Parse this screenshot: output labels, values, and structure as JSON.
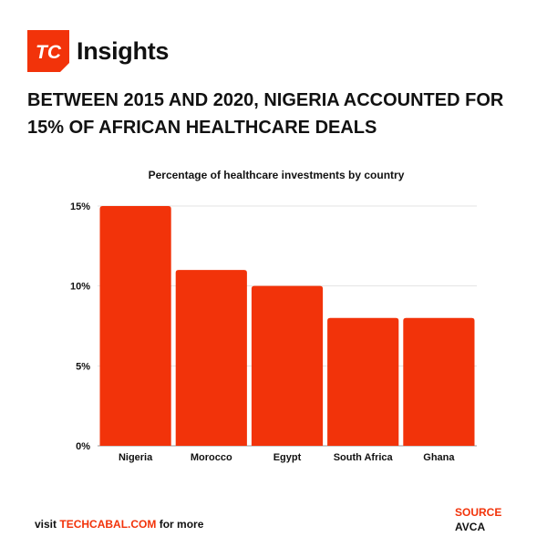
{
  "brand": {
    "logo_text": "TC",
    "name": "Insights",
    "accent_color": "#f2330a"
  },
  "headline": "BETWEEN 2015 AND 2020, NIGERIA ACCOUNTED FOR 15% OF AFRICAN HEALTHCARE DEALS",
  "chart_data": {
    "type": "bar",
    "title": "Percentage of healthcare investments by country",
    "categories": [
      "Nigeria",
      "Morocco",
      "Egypt",
      "South Africa",
      "Ghana"
    ],
    "values": [
      15,
      11,
      10,
      8,
      8
    ],
    "ylim": [
      0,
      15
    ],
    "yticks": [
      0,
      5,
      10,
      15
    ],
    "ytick_labels": [
      "0%",
      "5%",
      "10%",
      "15%"
    ],
    "xlabel": "",
    "ylabel": "",
    "grid": true,
    "bar_color": "#f2330a"
  },
  "footer": {
    "prefix": "visit ",
    "link_text": "TECHCABAL.COM",
    "suffix": " for more",
    "source_label": "SOURCE",
    "source_value": "AVCA"
  }
}
